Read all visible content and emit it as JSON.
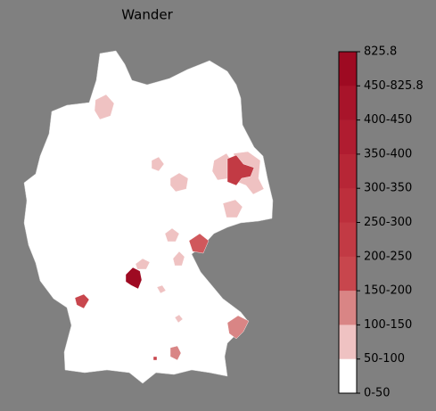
{
  "title": "Wander",
  "colorbar": {
    "labels": [
      "825.8",
      "450-825.8",
      "400-450",
      "350-400",
      "300-350",
      "250-300",
      "200-250",
      "150-200",
      "100-150",
      "50-100",
      "0-50"
    ],
    "colors": [
      "#9e0a22",
      "#a8142a",
      "#b01c30",
      "#b72636",
      "#bd2f3c",
      "#c23a44",
      "#c8464d",
      "#d98585",
      "#efc2c2",
      "#ffffff"
    ]
  }
}
